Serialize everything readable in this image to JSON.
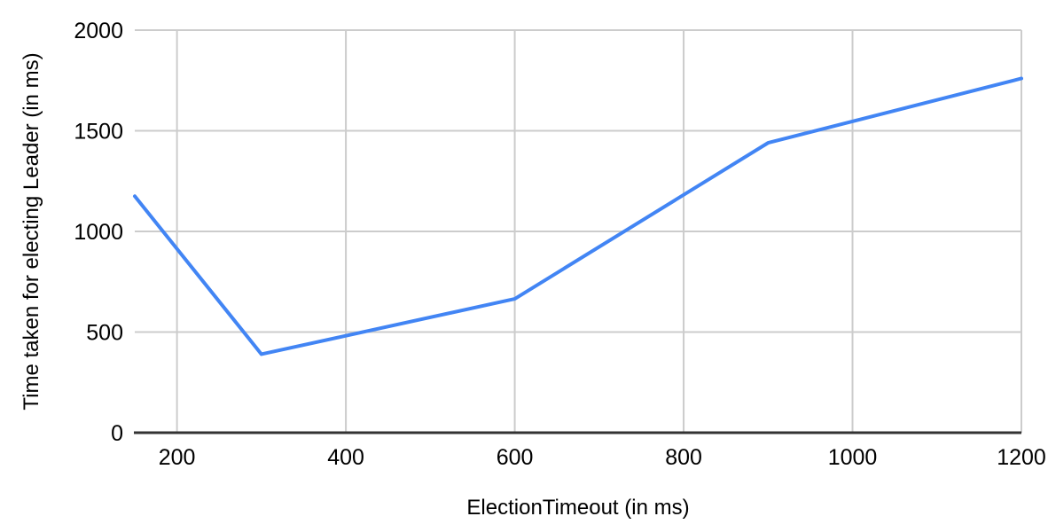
{
  "chart_data": {
    "type": "line",
    "x": [
      150,
      300,
      600,
      900,
      1200
    ],
    "y": [
      1175,
      390,
      665,
      1440,
      1760
    ],
    "xlabel": "ElectionTimeout (in ms)",
    "ylabel": "Time taken for electing Leader (in ms)",
    "xticks": [
      200,
      400,
      600,
      800,
      1000,
      1200
    ],
    "yticks": [
      0,
      500,
      1000,
      1500,
      2000
    ],
    "xlim": [
      150,
      1200
    ],
    "ylim": [
      0,
      2000
    ],
    "grid": true,
    "legend": "none",
    "title": "",
    "colors": {
      "line": "#4285F4",
      "gridline": "#cccccc",
      "axis": "#333333",
      "text": "#000000",
      "background": "#ffffff"
    }
  }
}
